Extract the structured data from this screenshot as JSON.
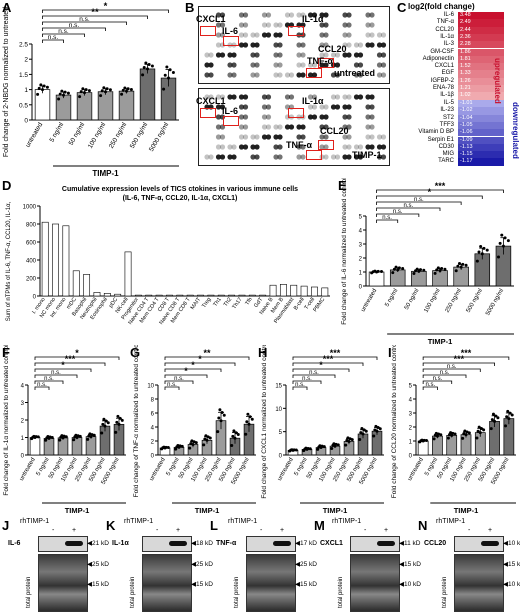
{
  "panels": {
    "A": {
      "label": "A",
      "ylabel": "Fold change of 2-NBDG normalized to untreated",
      "xgroup": "TIMP-1",
      "categories": [
        "untreated",
        "5 ng/ml",
        "50 ng/ml",
        "100 ng/ml",
        "250 ng/ml",
        "500 ng/ml",
        "5000 ng/ml"
      ],
      "means": [
        1.0,
        0.82,
        0.9,
        0.93,
        0.95,
        1.68,
        1.38
      ],
      "errors": [
        0.12,
        0.1,
        0.1,
        0.1,
        0.08,
        0.15,
        0.28
      ],
      "ylim": [
        0,
        2.5
      ],
      "yticks": [
        0,
        0.5,
        1.0,
        1.5,
        2.0,
        2.5
      ],
      "sig": [
        {
          "from": 0,
          "to": 6,
          "label": "*"
        },
        {
          "from": 0,
          "to": 5,
          "label": "**"
        },
        {
          "from": 0,
          "to": 4,
          "label": "n.s."
        },
        {
          "from": 0,
          "to": 3,
          "label": "n.s."
        },
        {
          "from": 0,
          "to": 2,
          "label": "n.s."
        },
        {
          "from": 0,
          "to": 1,
          "label": "n.s."
        }
      ]
    },
    "B": {
      "label": "B",
      "top": {
        "labels": [
          "CXCL1",
          "IL-6",
          "IL-1α",
          "CCL20",
          "TNF-α",
          "untreated"
        ]
      },
      "bottom": {
        "labels": [
          "CXCL1",
          "IL-6",
          "IL-1α",
          "CCL20",
          "TNF-α",
          "TIMP-1"
        ]
      }
    },
    "C": {
      "label": "C",
      "title": "log2(fold change)",
      "up_label": "upregulated",
      "down_label": "downregulated",
      "up": [
        {
          "name": "IL-6",
          "value": "3.48"
        },
        {
          "name": "TNF-α",
          "value": "2.49"
        },
        {
          "name": "CCL20",
          "value": "2.44"
        },
        {
          "name": "IL-1α",
          "value": "2.36"
        },
        {
          "name": "IL-3",
          "value": "2.28"
        },
        {
          "name": "GM-CSF",
          "value": "1.86"
        },
        {
          "name": "Adiponectin",
          "value": "1.81"
        },
        {
          "name": "CXCL1",
          "value": "1.52"
        },
        {
          "name": "EGF",
          "value": "1.33"
        },
        {
          "name": "IGFBP-2",
          "value": "1.26"
        },
        {
          "name": "ENA-78",
          "value": "1.21"
        },
        {
          "name": "IL-1β",
          "value": "1.02"
        }
      ],
      "down": [
        {
          "name": "IL-5",
          "value": "-1.01"
        },
        {
          "name": "IL-23",
          "value": "-1.02"
        },
        {
          "name": "ST2",
          "value": "-1.04"
        },
        {
          "name": "TFF3",
          "value": "-1.05"
        },
        {
          "name": "Vitamin D BP",
          "value": "-1.06"
        },
        {
          "name": "Serpin E1",
          "value": "-1.09"
        },
        {
          "name": "CD30",
          "value": "-1.13"
        },
        {
          "name": "MIG",
          "value": "-1.15"
        },
        {
          "name": "TARC",
          "value": "-1.17"
        }
      ]
    },
    "D": {
      "label": "D",
      "title": "Cumulative expression levels of TICS ctokines in various immune cells",
      "subtitle": "(IL-6, TNF-α, CCL20, IL-1α, CXCL1)",
      "ylabel": "Sum of nTPMs of IL-6, TNF-α, CCL20, IL-1α, CXCL1",
      "categories": [
        "I. mono",
        "NC mono",
        "Int. mono",
        "mDC",
        "Basophil",
        "Neutrophil",
        "Eosinophil",
        "pDC",
        "NK-cell",
        "Progenitor",
        "Naive CD4 T",
        "Mem CD4 T",
        "CD8 T",
        "Naive CD8 T",
        "Mem CD8 T",
        "MAIT",
        "Treg",
        "Th1",
        "Th2",
        "Th17",
        "Tfh",
        "GdT",
        "Naive B",
        "Mem B",
        "Plasmablast",
        "B-cell",
        "T-cell",
        "PBMC"
      ],
      "values": [
        820,
        800,
        780,
        280,
        240,
        40,
        30,
        20,
        490,
        10,
        10,
        10,
        10,
        10,
        10,
        10,
        10,
        10,
        10,
        10,
        10,
        10,
        120,
        130,
        120,
        110,
        100,
        90
      ],
      "ylim": [
        0,
        1000
      ],
      "yticks": [
        0,
        200,
        400,
        600,
        800,
        1000
      ]
    },
    "E": {
      "label": "E",
      "ylabel": "Fold change of IL-6 normalized to untreated control",
      "xgroup": "TIMP-1",
      "means": [
        1.0,
        1.15,
        1.05,
        1.1,
        1.35,
        2.3,
        2.85
      ],
      "errors": [
        0.05,
        0.15,
        0.12,
        0.15,
        0.2,
        0.4,
        0.6
      ],
      "ylim": [
        0,
        5
      ],
      "yticks": [
        0,
        1,
        2,
        3,
        4,
        5
      ],
      "sig": [
        {
          "from": 0,
          "to": 6,
          "label": "***"
        },
        {
          "from": 0,
          "to": 5,
          "label": "*"
        },
        {
          "from": 0,
          "to": 4,
          "label": "n.s."
        },
        {
          "from": 0,
          "to": 3,
          "label": "n.s."
        },
        {
          "from": 0,
          "to": 2,
          "label": "n.s."
        },
        {
          "from": 0,
          "to": 1,
          "label": "n.s."
        }
      ]
    },
    "F": {
      "label": "F",
      "ylabel": "Fold change of IL-1α normalized to untreated control",
      "xgroup": "TIMP-1",
      "means": [
        1.0,
        0.95,
        0.98,
        1.0,
        1.05,
        1.65,
        1.75
      ],
      "errors": [
        0.05,
        0.08,
        0.1,
        0.1,
        0.12,
        0.3,
        0.35
      ],
      "ylim": [
        0,
        4
      ],
      "yticks": [
        0,
        1,
        2,
        3,
        4
      ],
      "sig": [
        {
          "from": 0,
          "to": 6,
          "label": "*"
        },
        {
          "from": 0,
          "to": 5,
          "label": "***"
        },
        {
          "from": 0,
          "to": 4,
          "label": "*"
        },
        {
          "from": 0,
          "to": 3,
          "label": "n.s."
        },
        {
          "from": 0,
          "to": 2,
          "label": "n.s."
        },
        {
          "from": 0,
          "to": 1,
          "label": "n.s."
        }
      ]
    },
    "G": {
      "label": "G",
      "ylabel": "Fold change of TNF-α normalized to untreated control",
      "xgroup": "TIMP-1",
      "means": [
        1.0,
        1.1,
        1.5,
        2.1,
        4.9,
        2.4,
        4.4
      ],
      "errors": [
        0.1,
        0.2,
        0.4,
        0.5,
        1.2,
        0.8,
        1.1
      ],
      "ylim": [
        0,
        10
      ],
      "yticks": [
        0,
        2,
        4,
        6,
        8,
        10
      ],
      "sig": [
        {
          "from": 0,
          "to": 6,
          "label": "**"
        },
        {
          "from": 0,
          "to": 5,
          "label": "*"
        },
        {
          "from": 0,
          "to": 4,
          "label": "*"
        },
        {
          "from": 0,
          "to": 3,
          "label": "*"
        },
        {
          "from": 0,
          "to": 2,
          "label": "n.s."
        },
        {
          "from": 0,
          "to": 1,
          "label": "n.s."
        }
      ]
    },
    "H": {
      "label": "H",
      "ylabel": "Fold change of CXCL1 normalized to untreated control",
      "xgroup": "TIMP-1",
      "means": [
        1.0,
        1.2,
        1.6,
        1.9,
        2.9,
        4.5,
        5.1
      ],
      "errors": [
        0.1,
        0.2,
        0.3,
        0.4,
        0.6,
        0.9,
        0.8
      ],
      "ylim": [
        0,
        15
      ],
      "yticks": [
        0,
        5,
        10,
        15
      ],
      "sig": [
        {
          "from": 0,
          "to": 6,
          "label": "***"
        },
        {
          "from": 0,
          "to": 5,
          "label": "***"
        },
        {
          "from": 0,
          "to": 4,
          "label": "*"
        },
        {
          "from": 0,
          "to": 3,
          "label": "n.s."
        },
        {
          "from": 0,
          "to": 2,
          "label": "n.s."
        },
        {
          "from": 0,
          "to": 1,
          "label": "n.s."
        }
      ]
    },
    "I": {
      "label": "I",
      "ylabel": "Fold change of CCL20 normalized to untreated control",
      "xgroup": "TIMP-1",
      "means": [
        1.0,
        1.35,
        1.4,
        1.45,
        1.6,
        2.4,
        2.6
      ],
      "errors": [
        0.05,
        0.15,
        0.15,
        0.2,
        0.3,
        0.4,
        0.4
      ],
      "ylim": [
        0,
        5
      ],
      "yticks": [
        0,
        1,
        2,
        3,
        4,
        5
      ],
      "sig": [
        {
          "from": 0,
          "to": 6,
          "label": "***"
        },
        {
          "from": 0,
          "to": 5,
          "label": "***"
        },
        {
          "from": 0,
          "to": 4,
          "label": "n.s."
        },
        {
          "from": 0,
          "to": 3,
          "label": "n.s."
        },
        {
          "from": 0,
          "to": 2,
          "label": "n.s."
        },
        {
          "from": 0,
          "to": 1,
          "label": "n.s."
        }
      ]
    }
  },
  "bar_categories": [
    "untreated",
    "5 ng/ml",
    "50 ng/ml",
    "100 ng/ml",
    "250 ng/ml",
    "500 ng/ml",
    "5000 ng/ml"
  ],
  "blots": [
    {
      "label": "J",
      "protein": "IL-6",
      "band": "21 kD",
      "lower": [
        "25 kD",
        "15 kD"
      ],
      "total": "total protein"
    },
    {
      "label": "K",
      "protein": "IL-1α",
      "band": "18 kD",
      "lower": [
        "25 kD",
        "15 kD"
      ],
      "total": "total protein"
    },
    {
      "label": "L",
      "protein": "TNF-α",
      "band": "17 kD",
      "lower": [
        "25 kD",
        "15 kD"
      ],
      "total": "total protein"
    },
    {
      "label": "M",
      "protein": "CXCL1",
      "band": "11 kD",
      "lower": [
        "15 kD",
        "10 kD"
      ],
      "total": "total protein"
    },
    {
      "label": "N",
      "protein": "CCL20",
      "band": "10 kD",
      "lower": [
        "15 kD",
        "10 kD"
      ],
      "total": "total protein"
    }
  ],
  "blot_header": {
    "treatment": "rhTIMP-1",
    "minus": "-",
    "plus": "+"
  },
  "colors": {
    "bar": "#9b9b9b",
    "bar_treated_high": "#6e6e6e",
    "sig_red": "#d01c1c",
    "up_dark": "#c8102e",
    "down_dark": "#1a1aa8"
  }
}
